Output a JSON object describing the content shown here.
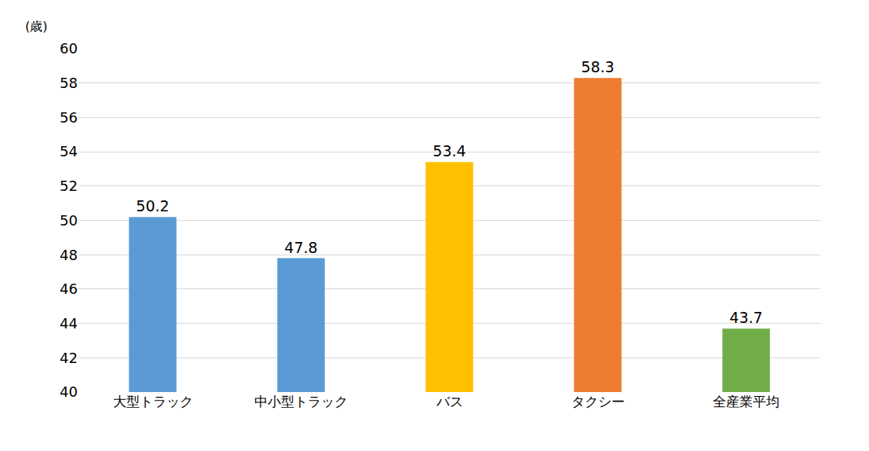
{
  "chart_data": {
    "type": "bar",
    "ylabel": "(歳)",
    "categories": [
      "大型トラック",
      "中小型トラック",
      "バス",
      "タクシー",
      "全産業平均"
    ],
    "values": [
      50.2,
      47.8,
      53.4,
      58.3,
      43.7
    ],
    "colors": [
      "#5b9bd5",
      "#5b9bd5",
      "#ffc000",
      "#ed7d31",
      "#70ad47"
    ],
    "ylim": [
      40,
      60
    ],
    "yticks": [
      40,
      42,
      44,
      46,
      48,
      50,
      52,
      54,
      56,
      58,
      60
    ],
    "grid": true,
    "data_labels": true
  }
}
